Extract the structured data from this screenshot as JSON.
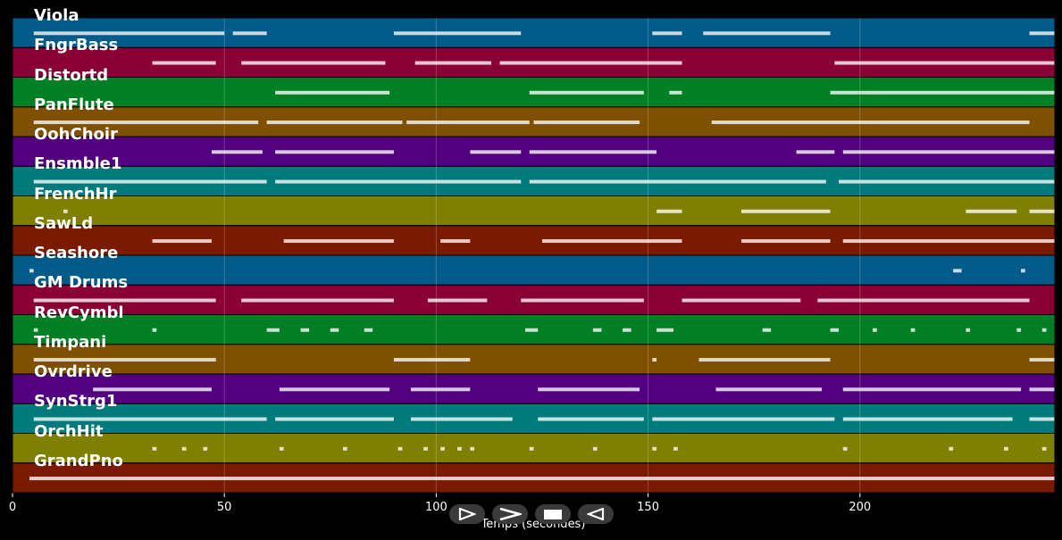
{
  "chart_data": {
    "type": "piano-roll",
    "xlabel": "Temps (secondes)",
    "xlim": [
      0,
      246
    ],
    "x_ticks": [
      0,
      50,
      100,
      150,
      200
    ],
    "tracks": [
      {
        "name": "Viola",
        "color": "#005b8a",
        "notes": [
          [
            5,
            50
          ],
          [
            52,
            60
          ],
          [
            90,
            120
          ],
          [
            151,
            158
          ],
          [
            163,
            193
          ],
          [
            240,
            246
          ]
        ]
      },
      {
        "name": "FngrBass",
        "color": "#8a0034",
        "notes": [
          [
            33,
            48
          ],
          [
            54,
            88
          ],
          [
            95,
            113
          ],
          [
            115,
            158
          ],
          [
            194,
            246
          ]
        ]
      },
      {
        "name": "Distortd",
        "color": "#007f24",
        "notes": [
          [
            62,
            89
          ],
          [
            122,
            149
          ],
          [
            155,
            158
          ],
          [
            193,
            246
          ]
        ]
      },
      {
        "name": "PanFlute",
        "color": "#7f5000",
        "notes": [
          [
            5,
            58
          ],
          [
            60,
            92
          ],
          [
            93,
            122
          ],
          [
            123,
            148
          ],
          [
            165,
            240
          ]
        ]
      },
      {
        "name": "OohChoir",
        "color": "#520080",
        "notes": [
          [
            47,
            59
          ],
          [
            62,
            90
          ],
          [
            108,
            120
          ],
          [
            122,
            152
          ],
          [
            185,
            194
          ],
          [
            196,
            246
          ]
        ]
      },
      {
        "name": "Ensmble1",
        "color": "#007a7a",
        "notes": [
          [
            5,
            60
          ],
          [
            62,
            90
          ],
          [
            90,
            120
          ],
          [
            122,
            192
          ],
          [
            195,
            246
          ]
        ]
      },
      {
        "name": "FrenchHr",
        "color": "#7f7f00",
        "notes": [
          [
            12,
            13
          ],
          [
            152,
            158
          ],
          [
            172,
            193
          ],
          [
            225,
            237
          ],
          [
            240,
            246
          ]
        ]
      },
      {
        "name": "SawLd",
        "color": "#7a1a00",
        "notes": [
          [
            33,
            47
          ],
          [
            64,
            90
          ],
          [
            101,
            108
          ],
          [
            125,
            158
          ],
          [
            172,
            193
          ],
          [
            196,
            246
          ]
        ]
      },
      {
        "name": "Seashore",
        "color": "#005b8a",
        "notes": [
          [
            4,
            5
          ],
          [
            222,
            224
          ],
          [
            238,
            239
          ]
        ]
      },
      {
        "name": "GM Drums",
        "color": "#8a0034",
        "notes": [
          [
            5,
            48
          ],
          [
            54,
            90
          ],
          [
            98,
            112
          ],
          [
            120,
            149
          ],
          [
            158,
            186
          ],
          [
            190,
            240
          ]
        ]
      },
      {
        "name": "RevCymbl",
        "color": "#007f24",
        "notes": [
          [
            5,
            6
          ],
          [
            33,
            34
          ],
          [
            60,
            63
          ],
          [
            68,
            70
          ],
          [
            75,
            77
          ],
          [
            83,
            85
          ],
          [
            121,
            124
          ],
          [
            137,
            139
          ],
          [
            144,
            146
          ],
          [
            152,
            156
          ],
          [
            177,
            179
          ],
          [
            193,
            195
          ],
          [
            203,
            204
          ],
          [
            212,
            213
          ],
          [
            225,
            226
          ],
          [
            237,
            238
          ],
          [
            243,
            244
          ]
        ]
      },
      {
        "name": "Timpani",
        "color": "#7f5000",
        "notes": [
          [
            5,
            48
          ],
          [
            90,
            108
          ],
          [
            151,
            152
          ],
          [
            162,
            193
          ],
          [
            240,
            246
          ]
        ]
      },
      {
        "name": "Ovrdrive",
        "color": "#520080",
        "notes": [
          [
            19,
            47
          ],
          [
            63,
            89
          ],
          [
            94,
            108
          ],
          [
            124,
            148
          ],
          [
            166,
            191
          ],
          [
            196,
            238
          ],
          [
            240,
            246
          ]
        ]
      },
      {
        "name": "SynStrg1",
        "color": "#007a7a",
        "notes": [
          [
            5,
            60
          ],
          [
            62,
            90
          ],
          [
            94,
            118
          ],
          [
            124,
            149
          ],
          [
            151,
            194
          ],
          [
            196,
            236
          ],
          [
            240,
            246
          ]
        ]
      },
      {
        "name": "OrchHit",
        "color": "#7f7f00",
        "notes": [
          [
            33,
            34
          ],
          [
            40,
            41
          ],
          [
            45,
            46
          ],
          [
            63,
            64
          ],
          [
            78,
            79
          ],
          [
            91,
            92
          ],
          [
            97,
            98
          ],
          [
            101,
            102
          ],
          [
            105,
            106
          ],
          [
            108,
            109
          ],
          [
            122,
            123
          ],
          [
            137,
            138
          ],
          [
            151,
            152
          ],
          [
            156,
            157
          ],
          [
            196,
            197
          ],
          [
            221,
            222
          ],
          [
            234,
            235
          ],
          [
            243,
            244
          ]
        ]
      },
      {
        "name": "GrandPno",
        "color": "#7a1a00",
        "notes": [
          [
            4,
            246
          ]
        ]
      }
    ]
  },
  "controls": {
    "play_label": "▶",
    "forward_label": "⯈",
    "stop_label": "■",
    "back_label": "◀"
  }
}
